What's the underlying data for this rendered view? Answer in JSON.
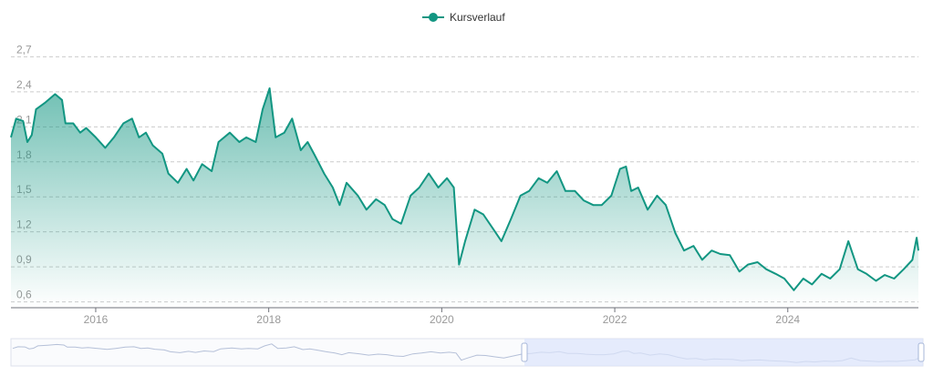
{
  "chart_data": {
    "type": "line",
    "legend_label": "Kursverlauf",
    "color": "#129682",
    "grid": true,
    "x": [
      2015.02,
      2015.08,
      2015.16,
      2015.21,
      2015.26,
      2015.31,
      2015.42,
      2015.53,
      2015.61,
      2015.65,
      2015.74,
      2015.82,
      2015.89,
      2016.0,
      2016.11,
      2016.21,
      2016.32,
      2016.42,
      2016.5,
      2016.58,
      2016.66,
      2016.77,
      2016.84,
      2016.95,
      2017.05,
      2017.13,
      2017.23,
      2017.34,
      2017.42,
      2017.55,
      2017.66,
      2017.74,
      2017.85,
      2017.93,
      2018.01,
      2018.08,
      2018.18,
      2018.27,
      2018.37,
      2018.45,
      2018.53,
      2018.64,
      2018.74,
      2018.82,
      2018.9,
      2019.03,
      2019.13,
      2019.24,
      2019.34,
      2019.43,
      2019.53,
      2019.64,
      2019.74,
      2019.85,
      2019.96,
      2020.06,
      2020.14,
      2020.2,
      2020.27,
      2020.38,
      2020.48,
      2020.59,
      2020.69,
      2020.8,
      2020.91,
      2021.01,
      2021.12,
      2021.22,
      2021.33,
      2021.43,
      2021.54,
      2021.64,
      2021.75,
      2021.85,
      2021.96,
      2022.06,
      2022.13,
      2022.19,
      2022.27,
      2022.38,
      2022.49,
      2022.59,
      2022.7,
      2022.8,
      2022.91,
      2023.01,
      2023.12,
      2023.22,
      2023.33,
      2023.44,
      2023.54,
      2023.65,
      2023.75,
      2023.86,
      2023.96,
      2024.07,
      2024.18,
      2024.28,
      2024.39,
      2024.49,
      2024.6,
      2024.7,
      2024.81,
      2024.91,
      2025.02,
      2025.12,
      2025.23,
      2025.34,
      2025.44,
      2025.49,
      2025.51
    ],
    "values": [
      2.01,
      2.17,
      2.15,
      1.97,
      2.03,
      2.25,
      2.31,
      2.38,
      2.33,
      2.13,
      2.13,
      2.05,
      2.09,
      2.01,
      1.92,
      2.01,
      2.13,
      2.17,
      2.01,
      2.05,
      1.94,
      1.87,
      1.7,
      1.62,
      1.74,
      1.64,
      1.78,
      1.72,
      1.97,
      2.05,
      1.97,
      2.01,
      1.97,
      2.25,
      2.43,
      2.01,
      2.05,
      2.17,
      1.9,
      1.97,
      1.86,
      1.7,
      1.58,
      1.43,
      1.62,
      1.51,
      1.39,
      1.48,
      1.43,
      1.31,
      1.27,
      1.51,
      1.58,
      1.7,
      1.58,
      1.66,
      1.58,
      0.92,
      1.12,
      1.39,
      1.35,
      1.23,
      1.12,
      1.31,
      1.51,
      1.55,
      1.66,
      1.62,
      1.72,
      1.55,
      1.55,
      1.47,
      1.43,
      1.43,
      1.51,
      1.74,
      1.76,
      1.55,
      1.58,
      1.39,
      1.51,
      1.43,
      1.19,
      1.04,
      1.08,
      0.96,
      1.04,
      1.01,
      1.0,
      0.86,
      0.92,
      0.94,
      0.88,
      0.84,
      0.8,
      0.7,
      0.8,
      0.75,
      0.84,
      0.8,
      0.88,
      1.12,
      0.88,
      0.84,
      0.78,
      0.83,
      0.8,
      0.88,
      0.96,
      1.15,
      1.04
    ],
    "xlim": [
      2015.02,
      2025.51
    ],
    "xticks": [
      2016,
      2018,
      2020,
      2022,
      2024
    ],
    "ylim": [
      0.55,
      2.75
    ],
    "yticks": [
      {
        "value": 0.6,
        "label": "0,6"
      },
      {
        "value": 0.9,
        "label": "0,9"
      },
      {
        "value": 1.2,
        "label": "1,2"
      },
      {
        "value": 1.5,
        "label": "1,5"
      },
      {
        "value": 1.8,
        "label": "1,8"
      },
      {
        "value": 2.1,
        "label": "2,1"
      },
      {
        "value": 2.4,
        "label": "2,4"
      },
      {
        "value": 2.7,
        "label": "2,7"
      }
    ]
  }
}
